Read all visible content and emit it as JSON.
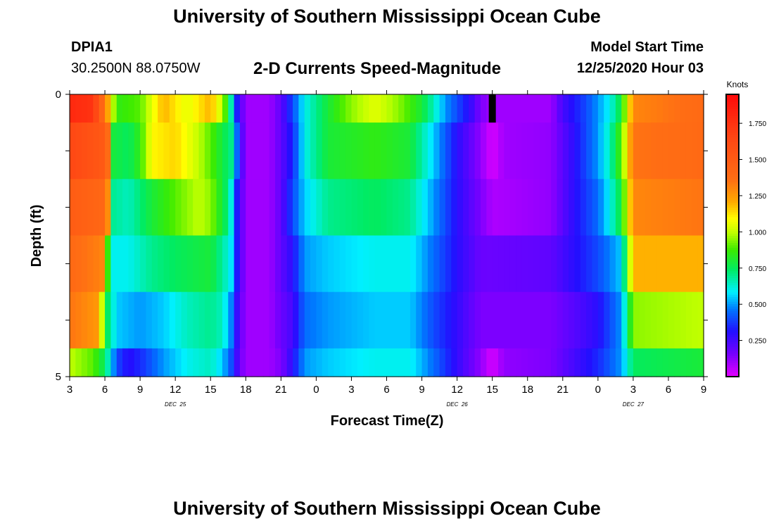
{
  "header": {
    "title": "University of Southern Mississippi Ocean Cube",
    "station_id": "DPIA1",
    "station_coords": "30.2500N 88.0750W",
    "model_start_label": "Model Start Time",
    "model_start_value": "12/25/2020 Hour 03"
  },
  "footer": {
    "title": "University of Southern Mississippi Ocean Cube"
  },
  "chart_data": {
    "type": "heatmap",
    "title": "2-D Currents Speed-Magnitude",
    "xlabel": "Forecast Time(Z)",
    "ylabel": "Depth (ft)",
    "colorbar_label": "Knots",
    "colorbar_ticks": [
      "0.250",
      "0.500",
      "0.750",
      "1.000",
      "1.250",
      "1.500",
      "1.750"
    ],
    "colorbar_range": [
      0.0,
      1.95
    ],
    "x_tick_labels": [
      "3",
      "6",
      "9",
      "12",
      "15",
      "18",
      "21",
      "0",
      "3",
      "6",
      "9",
      "12",
      "15",
      "18",
      "21",
      "0",
      "3",
      "6",
      "9"
    ],
    "date_labels": [
      {
        "label": "DEC  25",
        "tick_index": 3
      },
      {
        "label": "DEC  26",
        "tick_index": 11
      },
      {
        "label": "DEC  27",
        "tick_index": 16
      }
    ],
    "y_tick_labels": [
      "0",
      "5"
    ],
    "ylim": [
      0,
      5
    ],
    "x_hours_range": [
      0,
      54
    ],
    "depth_layers": [
      {
        "label": "layer-1",
        "depth_range": [
          0,
          0.5
        ],
        "profile": [
          [
            0,
            1.8
          ],
          [
            2,
            1.75
          ],
          [
            3.3,
            1.2
          ],
          [
            4,
            0.85
          ],
          [
            6,
            0.9
          ],
          [
            8,
            1.2
          ],
          [
            10,
            1.05
          ],
          [
            12,
            1.2
          ],
          [
            13,
            1.0
          ],
          [
            13.7,
            0.7
          ],
          [
            14.3,
            0.3
          ],
          [
            15,
            0.1
          ],
          [
            17,
            0.1
          ],
          [
            18,
            0.2
          ],
          [
            19,
            0.4
          ],
          [
            20,
            0.6
          ],
          [
            22,
            0.8
          ],
          [
            24,
            0.95
          ],
          [
            26,
            1.05
          ],
          [
            28,
            0.95
          ],
          [
            30,
            0.8
          ],
          [
            32,
            0.5
          ],
          [
            34,
            0.3
          ],
          [
            35,
            0.15
          ],
          [
            36,
            0.1
          ],
          [
            41,
            0.1
          ],
          [
            42,
            0.25
          ],
          [
            44,
            0.4
          ],
          [
            46,
            0.6
          ],
          [
            47,
            0.8
          ],
          [
            48,
            1.3
          ],
          [
            54,
            1.4
          ]
        ],
        "missing_cells": [
          {
            "hour_start": 35.7,
            "hour_end": 36.3
          }
        ]
      },
      {
        "label": "layer-2",
        "depth_range": [
          0.5,
          1.5
        ],
        "profile": [
          [
            0,
            1.65
          ],
          [
            3.2,
            1.5
          ],
          [
            3.5,
            0.8
          ],
          [
            5,
            0.75
          ],
          [
            6,
            0.85
          ],
          [
            7,
            1.1
          ],
          [
            9,
            1.15
          ],
          [
            11,
            1.0
          ],
          [
            12,
            0.9
          ],
          [
            13.8,
            0.7
          ],
          [
            14.5,
            0.3
          ],
          [
            15,
            0.1
          ],
          [
            17,
            0.1
          ],
          [
            18,
            0.2
          ],
          [
            19,
            0.35
          ],
          [
            20,
            0.6
          ],
          [
            22,
            0.8
          ],
          [
            26,
            0.85
          ],
          [
            29,
            0.8
          ],
          [
            31,
            0.55
          ],
          [
            33,
            0.3
          ],
          [
            35,
            0.12
          ],
          [
            36,
            0.02
          ],
          [
            37,
            0.1
          ],
          [
            41,
            0.12
          ],
          [
            43,
            0.3
          ],
          [
            45,
            0.5
          ],
          [
            46,
            0.65
          ],
          [
            47,
            0.9
          ],
          [
            48,
            1.35
          ],
          [
            54,
            1.4
          ]
        ]
      },
      {
        "label": "layer-3",
        "depth_range": [
          1.5,
          2.5
        ],
        "profile": [
          [
            0,
            1.5
          ],
          [
            3.2,
            1.4
          ],
          [
            3.5,
            0.7
          ],
          [
            5,
            0.65
          ],
          [
            7,
            0.8
          ],
          [
            9,
            0.9
          ],
          [
            11,
            1.0
          ],
          [
            12,
            0.95
          ],
          [
            13.6,
            0.7
          ],
          [
            14.3,
            0.3
          ],
          [
            15,
            0.1
          ],
          [
            17,
            0.1
          ],
          [
            18,
            0.2
          ],
          [
            19,
            0.4
          ],
          [
            20,
            0.55
          ],
          [
            22,
            0.7
          ],
          [
            26,
            0.75
          ],
          [
            29,
            0.7
          ],
          [
            31,
            0.5
          ],
          [
            33,
            0.3
          ],
          [
            35,
            0.15
          ],
          [
            36,
            0.08
          ],
          [
            41,
            0.12
          ],
          [
            43,
            0.3
          ],
          [
            45,
            0.45
          ],
          [
            46,
            0.6
          ],
          [
            47,
            0.8
          ],
          [
            48,
            1.3
          ],
          [
            54,
            1.35
          ]
        ]
      },
      {
        "label": "layer-4",
        "depth_range": [
          2.5,
          3.5
        ],
        "profile": [
          [
            0,
            1.4
          ],
          [
            3,
            1.3
          ],
          [
            3.4,
            0.6
          ],
          [
            5,
            0.6
          ],
          [
            7,
            0.7
          ],
          [
            9,
            0.75
          ],
          [
            12,
            0.8
          ],
          [
            13.7,
            0.6
          ],
          [
            14.3,
            0.3
          ],
          [
            15,
            0.1
          ],
          [
            17,
            0.1
          ],
          [
            18,
            0.2
          ],
          [
            19,
            0.3
          ],
          [
            20,
            0.5
          ],
          [
            22,
            0.55
          ],
          [
            26,
            0.6
          ],
          [
            29,
            0.6
          ],
          [
            31,
            0.45
          ],
          [
            33,
            0.3
          ],
          [
            35,
            0.18
          ],
          [
            41,
            0.2
          ],
          [
            43,
            0.3
          ],
          [
            45,
            0.4
          ],
          [
            47,
            0.55
          ],
          [
            48,
            1.2
          ],
          [
            54,
            1.2
          ]
        ]
      },
      {
        "label": "layer-5",
        "depth_range": [
          3.5,
          4.5
        ],
        "profile": [
          [
            0,
            1.35
          ],
          [
            2.5,
            1.25
          ],
          [
            3,
            0.8
          ],
          [
            4,
            0.55
          ],
          [
            6,
            0.5
          ],
          [
            8,
            0.55
          ],
          [
            10,
            0.65
          ],
          [
            12,
            0.7
          ],
          [
            13,
            0.65
          ],
          [
            13.7,
            0.5
          ],
          [
            14.3,
            0.25
          ],
          [
            15,
            0.1
          ],
          [
            17,
            0.1
          ],
          [
            18,
            0.18
          ],
          [
            19,
            0.25
          ],
          [
            20,
            0.45
          ],
          [
            22,
            0.5
          ],
          [
            26,
            0.55
          ],
          [
            29,
            0.55
          ],
          [
            31,
            0.4
          ],
          [
            33,
            0.28
          ],
          [
            35,
            0.15
          ],
          [
            41,
            0.15
          ],
          [
            43,
            0.22
          ],
          [
            45,
            0.3
          ],
          [
            47,
            0.5
          ],
          [
            48,
            0.95
          ],
          [
            54,
            1.0
          ]
        ]
      },
      {
        "label": "layer-6",
        "depth_range": [
          4.5,
          5
        ],
        "profile": [
          [
            0,
            1.0
          ],
          [
            2,
            0.9
          ],
          [
            3,
            0.75
          ],
          [
            4,
            0.4
          ],
          [
            5,
            0.3
          ],
          [
            6,
            0.35
          ],
          [
            8,
            0.5
          ],
          [
            10,
            0.6
          ],
          [
            12,
            0.65
          ],
          [
            13,
            0.55
          ],
          [
            13.8,
            0.4
          ],
          [
            14.4,
            0.2
          ],
          [
            15,
            0.1
          ],
          [
            17,
            0.1
          ],
          [
            18,
            0.15
          ],
          [
            19,
            0.3
          ],
          [
            20,
            0.5
          ],
          [
            22,
            0.55
          ],
          [
            26,
            0.6
          ],
          [
            29,
            0.6
          ],
          [
            31,
            0.45
          ],
          [
            33,
            0.28
          ],
          [
            35,
            0.12
          ],
          [
            36,
            0.02
          ],
          [
            37,
            0.12
          ],
          [
            41,
            0.15
          ],
          [
            43,
            0.25
          ],
          [
            45,
            0.35
          ],
          [
            47,
            0.5
          ],
          [
            48,
            0.75
          ],
          [
            54,
            0.8
          ]
        ]
      }
    ]
  }
}
